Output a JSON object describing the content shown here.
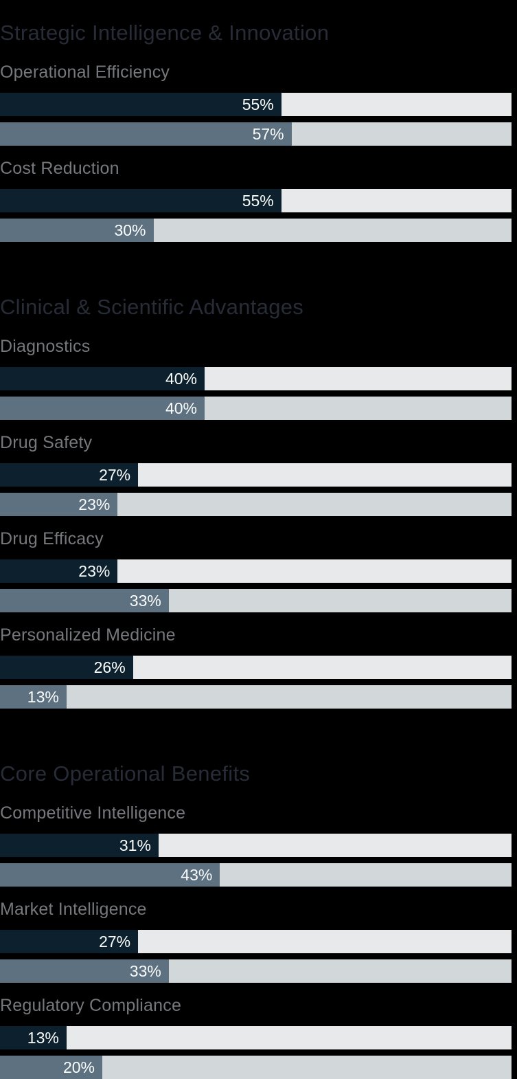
{
  "chart_data": {
    "type": "bar",
    "orientation": "horizontal",
    "unit": "%",
    "value_axis_range": [
      0,
      100
    ],
    "grid": false,
    "legend": "none",
    "colors": {
      "background": "#000000",
      "section_title_text": "#272c37",
      "group_label_text": "#76787c",
      "value_label_text": "#fbfcfc",
      "series1_fill": "#0c212d",
      "series1_track": "#e7e9ea",
      "series2_fill": "#5d7181",
      "series2_track": "#d2d8da"
    },
    "sections": [
      {
        "title": "Strategic Intelligence & Innovation",
        "groups": [
          {
            "label": "Operational Efficiency",
            "bars": [
              {
                "value": 55,
                "label": "55%"
              },
              {
                "value": 57,
                "label": "57%"
              }
            ]
          },
          {
            "label": "Cost Reduction",
            "bars": [
              {
                "value": 55,
                "label": "55%"
              },
              {
                "value": 30,
                "label": "30%"
              }
            ]
          }
        ]
      },
      {
        "title": "Clinical & Scientific Advantages",
        "groups": [
          {
            "label": "Diagnostics",
            "bars": [
              {
                "value": 40,
                "label": "40%"
              },
              {
                "value": 40,
                "label": "40%"
              }
            ]
          },
          {
            "label": "Drug Safety",
            "bars": [
              {
                "value": 27,
                "label": "27%"
              },
              {
                "value": 23,
                "label": "23%"
              }
            ]
          },
          {
            "label": "Drug Efficacy",
            "bars": [
              {
                "value": 23,
                "label": "23%"
              },
              {
                "value": 33,
                "label": "33%"
              }
            ]
          },
          {
            "label": "Personalized Medicine",
            "bars": [
              {
                "value": 26,
                "label": "26%"
              },
              {
                "value": 13,
                "label": "13%"
              }
            ]
          }
        ]
      },
      {
        "title": "Core Operational Benefits",
        "groups": [
          {
            "label": "Competitive Intelligence",
            "bars": [
              {
                "value": 31,
                "label": "31%"
              },
              {
                "value": 43,
                "label": "43%"
              }
            ]
          },
          {
            "label": "Market Intelligence",
            "bars": [
              {
                "value": 27,
                "label": "27%"
              },
              {
                "value": 33,
                "label": "33%"
              }
            ]
          },
          {
            "label": "Regulatory Compliance",
            "bars": [
              {
                "value": 13,
                "label": "13%"
              },
              {
                "value": 20,
                "label": "20%"
              }
            ]
          }
        ]
      }
    ]
  }
}
